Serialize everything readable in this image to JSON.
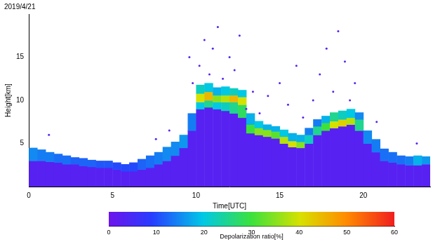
{
  "chart_data": {
    "type": "heatmap",
    "title": "2019/4/21",
    "x_label": "Time[UTC]",
    "y_label": "Height[km]",
    "xlim": [
      0,
      24
    ],
    "xticks": [
      0,
      5,
      10,
      15,
      20
    ],
    "ylim": [
      0,
      20
    ],
    "yticks": [
      5,
      10,
      15
    ],
    "grid": false,
    "cells": [
      [
        0,
        0.5,
        0,
        3.0,
        3
      ],
      [
        0,
        0.5,
        3.0,
        4.5,
        15
      ],
      [
        0.5,
        1,
        0,
        3.0,
        3
      ],
      [
        0.5,
        1,
        3.0,
        4.3,
        14
      ],
      [
        1,
        1.5,
        0,
        2.9,
        3
      ],
      [
        1,
        1.5,
        2.9,
        4.0,
        14
      ],
      [
        1.5,
        2,
        0,
        2.8,
        3
      ],
      [
        1.5,
        2,
        2.8,
        3.8,
        13
      ],
      [
        2,
        2.5,
        0,
        2.6,
        3
      ],
      [
        2,
        2.5,
        2.6,
        3.6,
        13
      ],
      [
        2.5,
        3,
        0,
        2.6,
        3
      ],
      [
        2.5,
        3,
        2.6,
        3.4,
        12
      ],
      [
        3,
        3.5,
        0,
        2.4,
        3
      ],
      [
        3,
        3.5,
        2.4,
        3.3,
        12
      ],
      [
        3.5,
        4,
        0,
        2.3,
        3
      ],
      [
        3.5,
        4,
        2.3,
        3.1,
        12
      ],
      [
        4,
        4.5,
        0,
        2.2,
        3
      ],
      [
        4,
        4.5,
        2.2,
        3.0,
        11
      ],
      [
        4.5,
        5,
        0,
        2.2,
        3
      ],
      [
        4.5,
        5,
        2.2,
        3.0,
        11
      ],
      [
        5,
        5.5,
        0,
        2.0,
        3
      ],
      [
        5,
        5.5,
        2.0,
        2.8,
        10
      ],
      [
        5.5,
        6,
        0,
        1.8,
        3
      ],
      [
        5.5,
        6,
        1.8,
        2.6,
        10
      ],
      [
        6,
        6.5,
        0,
        1.8,
        3
      ],
      [
        6,
        6.5,
        1.8,
        2.8,
        10
      ],
      [
        6.5,
        7,
        0,
        2.0,
        3
      ],
      [
        6.5,
        7,
        2.0,
        3.2,
        12
      ],
      [
        7,
        7.5,
        0,
        2.2,
        3
      ],
      [
        7,
        7.5,
        2.2,
        3.6,
        13
      ],
      [
        7.5,
        8,
        0,
        2.6,
        3
      ],
      [
        7.5,
        8,
        2.6,
        4.0,
        14
      ],
      [
        8,
        8.5,
        0,
        3.0,
        3
      ],
      [
        8,
        8.5,
        3.0,
        4.6,
        15
      ],
      [
        8.5,
        9,
        0,
        3.6,
        3
      ],
      [
        8.5,
        9,
        3.6,
        5.2,
        15
      ],
      [
        9,
        9.5,
        0,
        4.5,
        3
      ],
      [
        9,
        9.5,
        4.5,
        6.0,
        16
      ],
      [
        9.5,
        10,
        0,
        6.5,
        3
      ],
      [
        9.5,
        10,
        6.5,
        8.5,
        14
      ],
      [
        10,
        10.5,
        0,
        9.0,
        3
      ],
      [
        10,
        10.5,
        9.0,
        9.8,
        20
      ],
      [
        10,
        10.5,
        9.8,
        10.8,
        40
      ],
      [
        10,
        10.5,
        10.8,
        11.8,
        22
      ],
      [
        10.5,
        11,
        0,
        9.2,
        3
      ],
      [
        10.5,
        11,
        9.2,
        10.0,
        25
      ],
      [
        10.5,
        11,
        10.0,
        11.0,
        45
      ],
      [
        10.5,
        11,
        11.0,
        12.0,
        20
      ],
      [
        11,
        11.5,
        0,
        9.0,
        3
      ],
      [
        11,
        11.5,
        9.0,
        9.8,
        20
      ],
      [
        11,
        11.5,
        9.8,
        10.6,
        35
      ],
      [
        11,
        11.5,
        10.6,
        11.5,
        18
      ],
      [
        11.5,
        12,
        0,
        8.8,
        3
      ],
      [
        11.5,
        12,
        8.8,
        9.8,
        22
      ],
      [
        11.5,
        12,
        9.8,
        10.6,
        38
      ],
      [
        11.5,
        12,
        10.6,
        11.6,
        20
      ],
      [
        12,
        12.5,
        0,
        8.5,
        3
      ],
      [
        12,
        12.5,
        8.5,
        9.8,
        25
      ],
      [
        12,
        12.5,
        9.8,
        10.6,
        45
      ],
      [
        12,
        12.5,
        10.6,
        11.4,
        22
      ],
      [
        12.5,
        13,
        0,
        8.0,
        3
      ],
      [
        12.5,
        13,
        8.0,
        9.5,
        28
      ],
      [
        12.5,
        13,
        9.5,
        10.4,
        40
      ],
      [
        12.5,
        13,
        10.4,
        11.2,
        20
      ],
      [
        13,
        13.5,
        0,
        6.2,
        3
      ],
      [
        13,
        13.5,
        6.2,
        7.2,
        30
      ],
      [
        13,
        13.5,
        7.2,
        8.5,
        18
      ],
      [
        13.5,
        14,
        0,
        6.0,
        3
      ],
      [
        13.5,
        14,
        6.0,
        6.8,
        35
      ],
      [
        13.5,
        14,
        6.8,
        7.6,
        20
      ],
      [
        14,
        14.5,
        0,
        5.8,
        3
      ],
      [
        14,
        14.5,
        5.8,
        6.6,
        35
      ],
      [
        14,
        14.5,
        6.6,
        7.2,
        18
      ],
      [
        14.5,
        15,
        0,
        5.6,
        3
      ],
      [
        14.5,
        15,
        5.6,
        6.4,
        32
      ],
      [
        14.5,
        15,
        6.4,
        7.0,
        18
      ],
      [
        15,
        15.5,
        0,
        5.0,
        3
      ],
      [
        15,
        15.5,
        5.0,
        5.8,
        38
      ],
      [
        15,
        15.5,
        5.8,
        6.6,
        20
      ],
      [
        15.5,
        16,
        0,
        4.6,
        3
      ],
      [
        15.5,
        16,
        4.6,
        5.3,
        40
      ],
      [
        15.5,
        16,
        5.3,
        6.2,
        18
      ],
      [
        16,
        16.5,
        0,
        4.5,
        3
      ],
      [
        16,
        16.5,
        4.5,
        5.2,
        35
      ],
      [
        16,
        16.5,
        5.2,
        6.0,
        18
      ],
      [
        16.5,
        17,
        0,
        5.0,
        3
      ],
      [
        16.5,
        17,
        5.0,
        6.0,
        22
      ],
      [
        16.5,
        17,
        6.0,
        6.8,
        14
      ],
      [
        17,
        17.5,
        0,
        6.0,
        3
      ],
      [
        17,
        17.5,
        6.0,
        7.0,
        25
      ],
      [
        17,
        17.5,
        7.0,
        7.8,
        14
      ],
      [
        17.5,
        18,
        0,
        6.5,
        3
      ],
      [
        17.5,
        18,
        6.5,
        7.4,
        30
      ],
      [
        17.5,
        18,
        7.4,
        8.2,
        18
      ],
      [
        18,
        18.5,
        0,
        6.8,
        3
      ],
      [
        18,
        18.5,
        6.8,
        7.6,
        40
      ],
      [
        18,
        18.5,
        7.6,
        8.6,
        25
      ],
      [
        18.5,
        19,
        0,
        7.0,
        3
      ],
      [
        18.5,
        19,
        7.0,
        7.8,
        42
      ],
      [
        18.5,
        19,
        7.8,
        8.8,
        22
      ],
      [
        19,
        19.5,
        0,
        7.2,
        3
      ],
      [
        19,
        19.5,
        7.2,
        8.0,
        38
      ],
      [
        19,
        19.5,
        8.0,
        9.0,
        20
      ],
      [
        19.5,
        20,
        0,
        6.5,
        3
      ],
      [
        19.5,
        20,
        6.5,
        7.8,
        25
      ],
      [
        19.5,
        20,
        7.8,
        8.6,
        15
      ],
      [
        20,
        20.5,
        0,
        5.0,
        3
      ],
      [
        20,
        20.5,
        5.0,
        6.5,
        15
      ],
      [
        20.5,
        21,
        0,
        4.0,
        3
      ],
      [
        20.5,
        21,
        4.0,
        5.5,
        14
      ],
      [
        21,
        21.5,
        0,
        3.0,
        3
      ],
      [
        21,
        21.5,
        3.0,
        4.4,
        13
      ],
      [
        21.5,
        22,
        0,
        2.8,
        3
      ],
      [
        21.5,
        22,
        2.8,
        4.0,
        13
      ],
      [
        22,
        22.5,
        0,
        2.6,
        3
      ],
      [
        22,
        22.5,
        2.6,
        3.6,
        13
      ],
      [
        22.5,
        23,
        0,
        2.5,
        3
      ],
      [
        22.5,
        23,
        2.5,
        3.5,
        14
      ],
      [
        23,
        23.5,
        0,
        2.5,
        3
      ],
      [
        23,
        23.5,
        2.5,
        3.6,
        18
      ],
      [
        23.5,
        24,
        0,
        2.6,
        3
      ],
      [
        23.5,
        24,
        2.6,
        3.5,
        16
      ]
    ],
    "points": [
      [
        10.2,
        14,
        3
      ],
      [
        10.5,
        17,
        3
      ],
      [
        10.8,
        13,
        3
      ],
      [
        11.0,
        16,
        3
      ],
      [
        11.3,
        18.5,
        3
      ],
      [
        11.6,
        12.5,
        3
      ],
      [
        12.0,
        15,
        3
      ],
      [
        12.3,
        13.5,
        3
      ],
      [
        12.6,
        17.5,
        3
      ],
      [
        13.0,
        9,
        3
      ],
      [
        13.4,
        11,
        3
      ],
      [
        13.8,
        8.5,
        3
      ],
      [
        14.3,
        10.5,
        3
      ],
      [
        15.0,
        12,
        3
      ],
      [
        15.5,
        9.5,
        3
      ],
      [
        16.0,
        14,
        3
      ],
      [
        16.4,
        8,
        3
      ],
      [
        17.0,
        10,
        3
      ],
      [
        17.4,
        13,
        3
      ],
      [
        17.8,
        16,
        3
      ],
      [
        18.2,
        11,
        3
      ],
      [
        18.5,
        18,
        3
      ],
      [
        18.9,
        14.5,
        3
      ],
      [
        19.2,
        10,
        3
      ],
      [
        19.5,
        12,
        3
      ],
      [
        9.8,
        12,
        3
      ],
      [
        9.6,
        15,
        3
      ],
      [
        1.2,
        6,
        3
      ],
      [
        7.6,
        5.5,
        3
      ],
      [
        8.4,
        6.5,
        3
      ],
      [
        20.8,
        7.5,
        3
      ],
      [
        23.2,
        5,
        3
      ]
    ],
    "colorbar": {
      "label": "Depolarization ratio[%]",
      "range": [
        0,
        60
      ],
      "ticks": [
        0,
        10,
        20,
        30,
        40,
        50,
        60
      ]
    }
  }
}
